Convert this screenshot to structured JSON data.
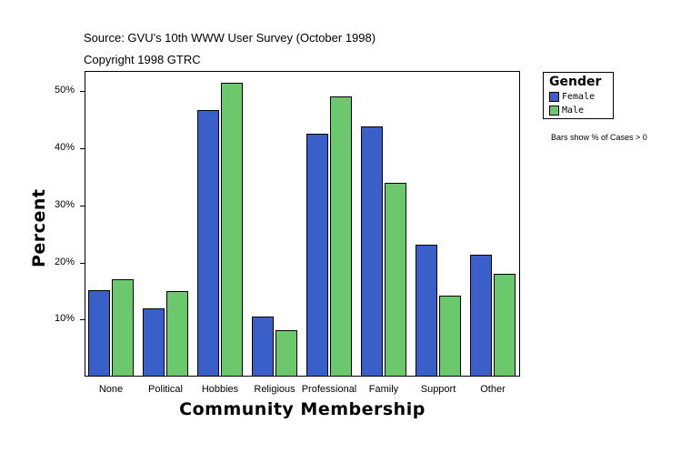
{
  "header": {
    "source": "Source: GVU's 10th WWW User Survey (October 1998)",
    "copyright": "Copyright 1998 GTRC"
  },
  "legend": {
    "title": "Gender",
    "items": [
      {
        "label": "Female",
        "color": "#3a5fc8"
      },
      {
        "label": "Male",
        "color": "#6cc86c"
      }
    ]
  },
  "note": "Bars show % of Cases > 0",
  "axes": {
    "xtitle": "Community Membership",
    "ytitle": "Percent",
    "yticks": [
      "10%",
      "20%",
      "30%",
      "40%",
      "50%"
    ]
  },
  "chart_data": {
    "type": "bar",
    "title": "",
    "xlabel": "Community Membership",
    "ylabel": "Percent",
    "categories": [
      "None",
      "Political",
      "Hobbies",
      "Religious",
      "Professional",
      "Family",
      "Support",
      "Other"
    ],
    "series": [
      {
        "name": "Female",
        "color": "#3a5fc8",
        "values": [
          15.1,
          12.0,
          46.7,
          10.5,
          42.5,
          43.8,
          23.1,
          21.4
        ]
      },
      {
        "name": "Male",
        "color": "#6cc86c",
        "values": [
          17.1,
          15.0,
          51.5,
          8.1,
          49.1,
          33.9,
          14.2,
          18.0
        ]
      }
    ],
    "ylim": [
      0,
      53.5
    ],
    "yticks": [
      10,
      20,
      30,
      40,
      50
    ],
    "grid": false,
    "legend_position": "right",
    "annotations": [
      "Source: GVU's 10th WWW User Survey (October 1998)",
      "Copyright 1998 GTRC",
      "Bars show % of Cases > 0"
    ]
  }
}
